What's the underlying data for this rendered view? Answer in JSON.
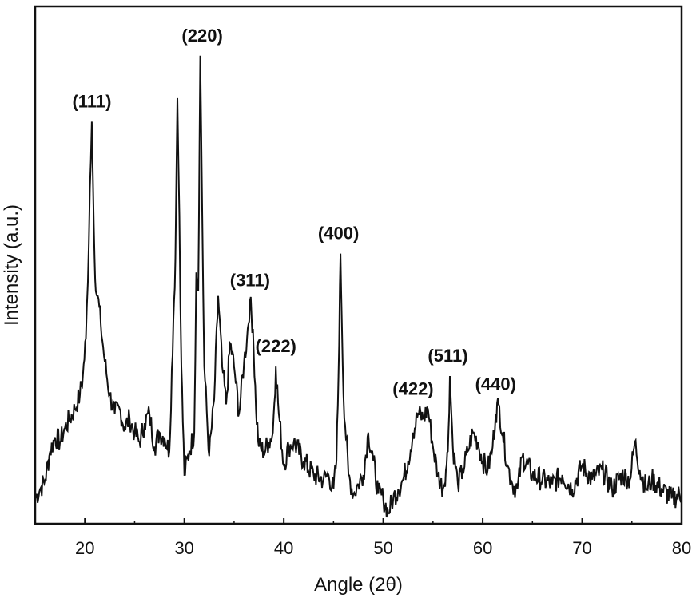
{
  "chart_data": {
    "type": "line",
    "title": "",
    "xlabel": "Angle (2θ)",
    "ylabel": "Intensity (a.u.)",
    "xlim": [
      15,
      80
    ],
    "ylim": [
      0,
      100
    ],
    "x_ticks": [
      20,
      30,
      40,
      50,
      60,
      70,
      80
    ],
    "y_ticks_shown": false,
    "grid": false,
    "legend": "none",
    "line_color": "#111111",
    "series": [
      {
        "x": [
          15,
          15.5,
          16,
          16.5,
          17,
          17.5,
          18,
          18.5,
          19,
          19.5,
          19.8,
          20.1,
          20.3,
          20.5,
          20.7,
          20.9,
          21.1,
          21.3,
          21.6,
          22,
          22.5,
          23,
          23.5,
          24,
          24.5,
          25,
          25.5,
          26,
          26.5,
          27,
          27.5,
          28,
          28.5,
          28.9,
          29.1,
          29.3,
          29.5,
          29.7,
          30,
          30.5,
          31,
          31.2,
          31.4,
          31.6,
          31.8,
          32,
          32.5,
          33,
          33.4,
          33.8,
          34.2,
          34.6,
          35,
          35.5,
          36,
          36.3,
          36.6,
          36.9,
          37.2,
          37.5,
          38,
          38.5,
          38.9,
          39.2,
          39.5,
          40,
          40.5,
          41,
          42,
          43,
          44,
          44.5,
          45,
          45.3,
          45.5,
          45.7,
          46,
          46.5,
          47,
          47.5,
          48,
          48.5,
          49,
          49.5,
          50,
          50.5,
          51,
          51.5,
          52,
          52.5,
          53,
          53.5,
          54,
          54.5,
          55,
          55.5,
          56,
          56.3,
          56.5,
          56.7,
          57,
          57.5,
          58,
          58.5,
          59,
          59.5,
          60,
          60.5,
          61,
          61.3,
          61.6,
          62,
          62.5,
          63,
          63.5,
          64,
          65,
          66,
          67,
          68,
          69,
          70,
          71,
          72,
          73,
          74,
          74.8,
          75.3,
          75.8,
          76.5,
          77,
          78,
          79,
          80
        ],
        "y": [
          4,
          6,
          8,
          14,
          17,
          16,
          19,
          21,
          23,
          26,
          30,
          38,
          50,
          70,
          84,
          62,
          48,
          47,
          41,
          33,
          26,
          22,
          23,
          19,
          21,
          18,
          16,
          20,
          22,
          15,
          18,
          17,
          14,
          42,
          55,
          89,
          64,
          32,
          9,
          14,
          18,
          52,
          48,
          98,
          64,
          32,
          13,
          25,
          47,
          32,
          24,
          37,
          32,
          22,
          33,
          38,
          46,
          40,
          23,
          15,
          14,
          16,
          18,
          32,
          22,
          11,
          15,
          16,
          12,
          9,
          8,
          9,
          6,
          12,
          30,
          56,
          26,
          9,
          5,
          7,
          9,
          18,
          12,
          5,
          4,
          1,
          4,
          6,
          8,
          12,
          18,
          22,
          21,
          23,
          15,
          9,
          6,
          10,
          14,
          30,
          15,
          7,
          10,
          14,
          18,
          16,
          12,
          10,
          15,
          22,
          24,
          18,
          11,
          7,
          6,
          13,
          9,
          8,
          7,
          9,
          6,
          11,
          8,
          10,
          6,
          9,
          8,
          16,
          10,
          6,
          8,
          6,
          4,
          5
        ]
      }
    ],
    "annotations": [
      {
        "text": "(111)",
        "x": 20.7,
        "y": 84
      },
      {
        "text": "(220)",
        "x": 31.8,
        "y": 98
      },
      {
        "text": "(311)",
        "x": 36.6,
        "y": 46
      },
      {
        "text": "(222)",
        "x": 39.2,
        "y": 32
      },
      {
        "text": "(400)",
        "x": 45.5,
        "y": 56
      },
      {
        "text": "(422)",
        "x": 53.0,
        "y": 23
      },
      {
        "text": "(511)",
        "x": 56.5,
        "y": 30
      },
      {
        "text": "(440)",
        "x": 61.3,
        "y": 24
      }
    ]
  }
}
